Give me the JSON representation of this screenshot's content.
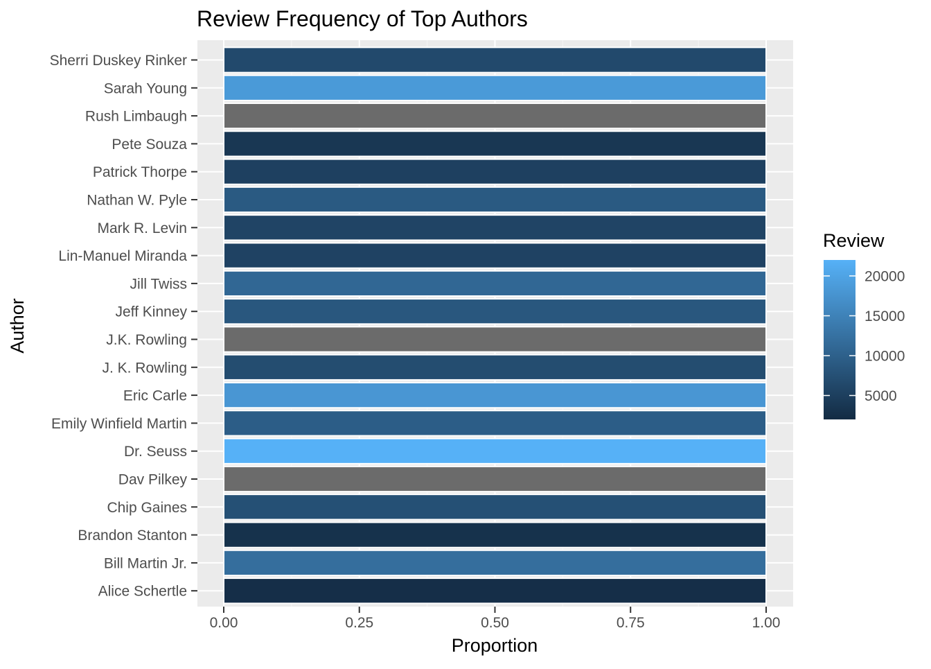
{
  "chart_data": {
    "type": "bar",
    "orientation": "horizontal",
    "title": "Review Frequency of Top Authors",
    "xlabel": "Proportion",
    "ylabel": "Author",
    "xlim": [
      0,
      1
    ],
    "x_ticks": [
      "0.00",
      "0.25",
      "0.50",
      "0.75",
      "1.00"
    ],
    "grid": true,
    "categories": [
      "Sherri Duskey Rinker",
      "Sarah Young",
      "Rush Limbaugh",
      "Pete Souza",
      "Patrick Thorpe",
      "Nathan W. Pyle",
      "Mark R. Levin",
      "Lin-Manuel Miranda",
      "Jill Twiss",
      "Jeff Kinney",
      "J.K. Rowling",
      "J. K. Rowling",
      "Eric Carle",
      "Emily Winfield Martin",
      "Dr. Seuss",
      "Dav Pilkey",
      "Chip Gaines",
      "Brandon Stanton",
      "Bill Martin Jr.",
      "Alice Schertle"
    ],
    "values": [
      1,
      1,
      1,
      1,
      1,
      1,
      1,
      1,
      1,
      1,
      1,
      1,
      1,
      1,
      1,
      1,
      1,
      1,
      1,
      1
    ],
    "fill_review": [
      6500,
      18500,
      null,
      3800,
      5200,
      9000,
      5800,
      5500,
      11000,
      8500,
      null,
      7000,
      18000,
      9500,
      22000,
      null,
      7500,
      3000,
      12000,
      2500
    ],
    "legend": {
      "title": "Review",
      "position": "right",
      "ticks": [
        "20000",
        "15000",
        "10000",
        "5000"
      ],
      "tick_values": [
        20000,
        15000,
        10000,
        5000
      ],
      "range": [
        2000,
        22000
      ],
      "low_color": "#132B43",
      "high_color": "#56B1F7"
    },
    "na_color": "#6B6B6B",
    "panel_color": "#EBEBEB"
  }
}
